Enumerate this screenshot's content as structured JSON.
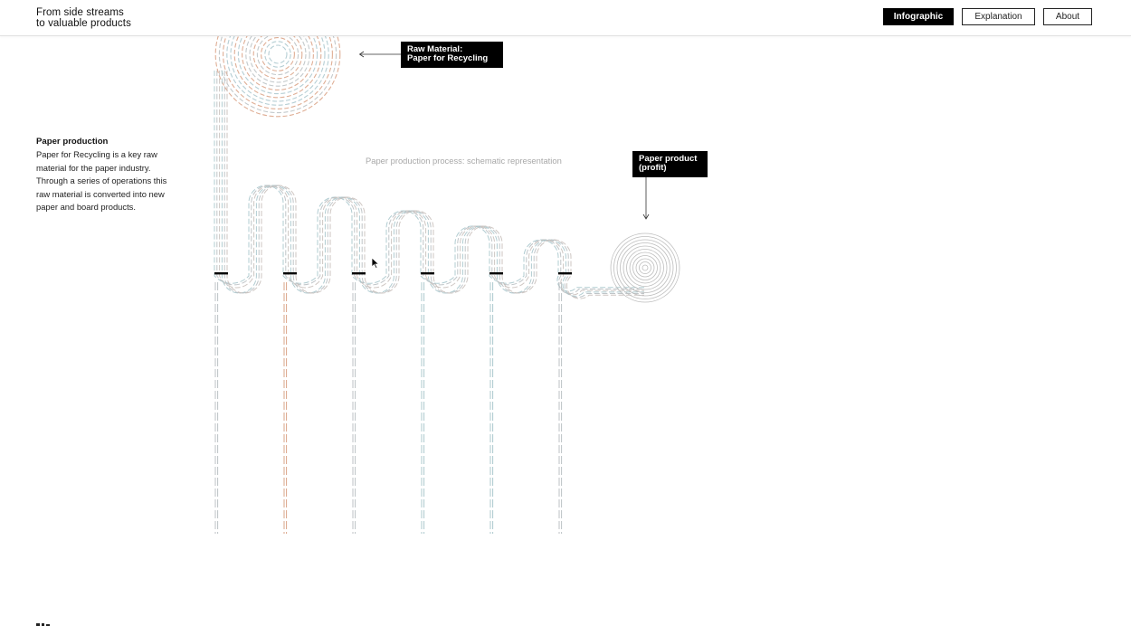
{
  "header": {
    "brand_line1": "From side streams",
    "brand_line2": "to valuable products",
    "nav": [
      {
        "label": "Infographic",
        "active": true
      },
      {
        "label": "Explanation",
        "active": false
      },
      {
        "label": "About",
        "active": false
      }
    ]
  },
  "side": {
    "title": "Paper production",
    "body": "Paper for Recycling is a key raw material for the paper industry. Through a series of operations this raw material is converted into new paper and board products."
  },
  "diagram": {
    "caption": "Paper production process: schematic representation",
    "tag_raw_line1": "Raw Material:",
    "tag_raw_line2": "Paper for Recycling",
    "tag_prod_line1": "Paper product",
    "tag_prod_line2": "(profit)",
    "colors": {
      "stream_main": "#b9bfc2",
      "stream_teal": "#a8c6cc",
      "stream_orange": "#d9a083",
      "stream_dark": "#555555",
      "marker": "#000000"
    }
  }
}
